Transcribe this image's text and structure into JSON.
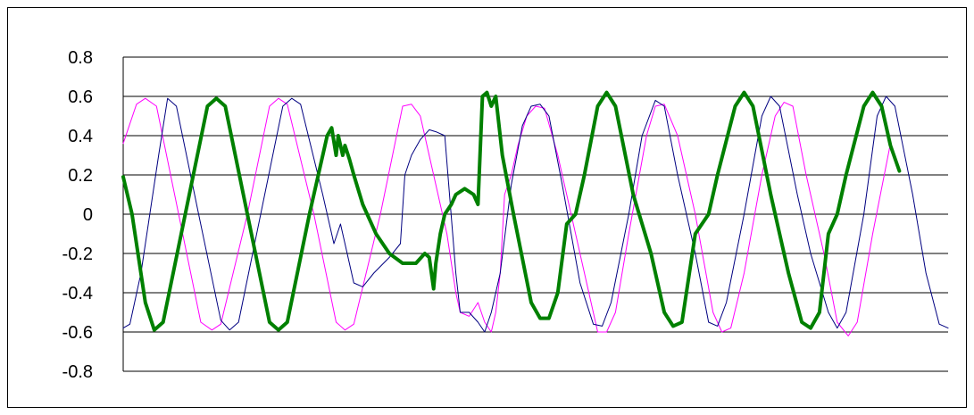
{
  "chart_data": {
    "type": "line",
    "title": "",
    "xlabel": "",
    "ylabel": "",
    "ylim": [
      -0.8,
      0.8
    ],
    "yticks": [
      {
        "value": 0.8,
        "label": "0.8"
      },
      {
        "value": 0.6,
        "label": "0.6"
      },
      {
        "value": 0.4,
        "label": "0.4"
      },
      {
        "value": 0.2,
        "label": "0.2"
      },
      {
        "value": 0,
        "label": "0"
      },
      {
        "value": -0.2,
        "label": "-0.2"
      },
      {
        "value": -0.4,
        "label": "-0.4"
      },
      {
        "value": -0.6,
        "label": "-0.6"
      },
      {
        "value": -0.8,
        "label": "-0.8"
      }
    ],
    "grid": true,
    "legend": "none",
    "series": [
      {
        "color": "#ff00ff",
        "stroke_width": 1,
        "points": [
          [
            0,
            0.36
          ],
          [
            6,
            0.56
          ],
          [
            10,
            0.59
          ],
          [
            15,
            0.55
          ],
          [
            25,
            0
          ],
          [
            35,
            -0.55
          ],
          [
            40,
            -0.59
          ],
          [
            44,
            -0.56
          ],
          [
            56,
            0
          ],
          [
            66,
            0.55
          ],
          [
            70,
            0.59
          ],
          [
            74,
            0.56
          ],
          [
            86,
            0
          ],
          [
            96,
            -0.55
          ],
          [
            100,
            -0.59
          ],
          [
            104,
            -0.56
          ],
          [
            116,
            0
          ],
          [
            126,
            0.55
          ],
          [
            130,
            0.56
          ],
          [
            134,
            0.5
          ],
          [
            146,
            -0.1
          ],
          [
            150,
            -0.4
          ],
          [
            152,
            -0.5
          ],
          [
            156,
            -0.52
          ],
          [
            160,
            -0.45
          ],
          [
            163,
            -0.55
          ],
          [
            166,
            -0.6
          ],
          [
            168,
            -0.5
          ],
          [
            170,
            -0.3
          ],
          [
            172,
            0.1
          ],
          [
            175,
            0.2
          ],
          [
            178,
            0.35
          ],
          [
            182,
            0.5
          ],
          [
            186,
            0.55
          ],
          [
            190,
            0.54
          ],
          [
            196,
            0.3
          ],
          [
            204,
            -0.1
          ],
          [
            210,
            -0.4
          ],
          [
            214,
            -0.6
          ],
          [
            218,
            -0.6
          ],
          [
            222,
            -0.5
          ],
          [
            228,
            -0.1
          ],
          [
            236,
            0.4
          ],
          [
            240,
            0.55
          ],
          [
            244,
            0.56
          ],
          [
            250,
            0.4
          ],
          [
            258,
            0
          ],
          [
            266,
            -0.5
          ],
          [
            270,
            -0.6
          ],
          [
            274,
            -0.58
          ],
          [
            280,
            -0.3
          ],
          [
            288,
            0.2
          ],
          [
            294,
            0.5
          ],
          [
            298,
            0.57
          ],
          [
            302,
            0.55
          ],
          [
            308,
            0.2
          ],
          [
            316,
            -0.2
          ],
          [
            322,
            -0.55
          ],
          [
            327,
            -0.62
          ],
          [
            331,
            -0.55
          ],
          [
            338,
            -0.1
          ],
          [
            346,
            0.36
          ]
        ]
      },
      {
        "color": "#000080",
        "stroke_width": 1,
        "points": [
          [
            0,
            -0.58
          ],
          [
            3,
            -0.56
          ],
          [
            8,
            -0.3
          ],
          [
            16,
            0.3
          ],
          [
            20,
            0.59
          ],
          [
            24,
            0.55
          ],
          [
            34,
            0
          ],
          [
            44,
            -0.54
          ],
          [
            48,
            -0.59
          ],
          [
            52,
            -0.55
          ],
          [
            62,
            0
          ],
          [
            72,
            0.55
          ],
          [
            76,
            0.59
          ],
          [
            80,
            0.56
          ],
          [
            90,
            0.1
          ],
          [
            95,
            -0.15
          ],
          [
            98,
            -0.05
          ],
          [
            100,
            -0.15
          ],
          [
            104,
            -0.35
          ],
          [
            108,
            -0.37
          ],
          [
            113,
            -0.3
          ],
          [
            120,
            -0.22
          ],
          [
            125,
            -0.15
          ],
          [
            127,
            0.2
          ],
          [
            130,
            0.3
          ],
          [
            134,
            0.38
          ],
          [
            138,
            0.43
          ],
          [
            141,
            0.42
          ],
          [
            145,
            0.4
          ],
          [
            150,
            -0.3
          ],
          [
            152,
            -0.5
          ],
          [
            156,
            -0.5
          ],
          [
            160,
            -0.55
          ],
          [
            163,
            -0.6
          ],
          [
            166,
            -0.5
          ],
          [
            170,
            -0.3
          ],
          [
            175,
            0.15
          ],
          [
            180,
            0.45
          ],
          [
            184,
            0.55
          ],
          [
            188,
            0.56
          ],
          [
            192,
            0.5
          ],
          [
            198,
            0.15
          ],
          [
            206,
            -0.35
          ],
          [
            212,
            -0.56
          ],
          [
            216,
            -0.57
          ],
          [
            220,
            -0.45
          ],
          [
            228,
            0
          ],
          [
            234,
            0.4
          ],
          [
            240,
            0.58
          ],
          [
            244,
            0.55
          ],
          [
            250,
            0.2
          ],
          [
            258,
            -0.2
          ],
          [
            264,
            -0.55
          ],
          [
            268,
            -0.57
          ],
          [
            272,
            -0.45
          ],
          [
            280,
            0
          ],
          [
            288,
            0.5
          ],
          [
            292,
            0.6
          ],
          [
            296,
            0.55
          ],
          [
            304,
            0.1
          ],
          [
            310,
            -0.2
          ],
          [
            318,
            -0.5
          ],
          [
            322,
            -0.58
          ],
          [
            326,
            -0.5
          ],
          [
            334,
            0
          ],
          [
            340,
            0.5
          ],
          [
            344,
            0.6
          ],
          [
            348,
            0.55
          ],
          [
            356,
            0.1
          ],
          [
            362,
            -0.3
          ],
          [
            368,
            -0.56
          ],
          [
            372,
            -0.58
          ]
        ]
      },
      {
        "color": "#008000",
        "stroke_width": 4,
        "points": [
          [
            0,
            0.19
          ],
          [
            4,
            0
          ],
          [
            10,
            -0.45
          ],
          [
            14,
            -0.59
          ],
          [
            18,
            -0.55
          ],
          [
            28,
            0
          ],
          [
            38,
            0.55
          ],
          [
            42,
            0.59
          ],
          [
            46,
            0.55
          ],
          [
            56,
            0
          ],
          [
            66,
            -0.55
          ],
          [
            70,
            -0.59
          ],
          [
            74,
            -0.55
          ],
          [
            84,
            0
          ],
          [
            92,
            0.4
          ],
          [
            94,
            0.44
          ],
          [
            96,
            0.3
          ],
          [
            97,
            0.4
          ],
          [
            99,
            0.3
          ],
          [
            100,
            0.35
          ],
          [
            102,
            0.28
          ],
          [
            104,
            0.2
          ],
          [
            108,
            0.05
          ],
          [
            114,
            -0.1
          ],
          [
            120,
            -0.2
          ],
          [
            126,
            -0.25
          ],
          [
            132,
            -0.25
          ],
          [
            136,
            -0.2
          ],
          [
            138,
            -0.22
          ],
          [
            140,
            -0.38
          ],
          [
            141,
            -0.25
          ],
          [
            143,
            -0.1
          ],
          [
            145,
            0
          ],
          [
            148,
            0.05
          ],
          [
            150,
            0.1
          ],
          [
            154,
            0.13
          ],
          [
            158,
            0.1
          ],
          [
            160,
            0.05
          ],
          [
            162,
            0.6
          ],
          [
            164,
            0.62
          ],
          [
            166,
            0.55
          ],
          [
            168,
            0.6
          ],
          [
            171,
            0.3
          ],
          [
            176,
            0
          ],
          [
            184,
            -0.45
          ],
          [
            188,
            -0.53
          ],
          [
            192,
            -0.53
          ],
          [
            196,
            -0.4
          ],
          [
            200,
            -0.05
          ],
          [
            204,
            0
          ],
          [
            208,
            0.2
          ],
          [
            214,
            0.55
          ],
          [
            218,
            0.62
          ],
          [
            222,
            0.55
          ],
          [
            230,
            0.1
          ],
          [
            238,
            -0.2
          ],
          [
            244,
            -0.5
          ],
          [
            248,
            -0.57
          ],
          [
            252,
            -0.55
          ],
          [
            258,
            -0.1
          ],
          [
            264,
            0
          ],
          [
            268,
            0.2
          ],
          [
            276,
            0.55
          ],
          [
            280,
            0.62
          ],
          [
            284,
            0.55
          ],
          [
            292,
            0.1
          ],
          [
            300,
            -0.3
          ],
          [
            306,
            -0.55
          ],
          [
            310,
            -0.58
          ],
          [
            314,
            -0.5
          ],
          [
            318,
            -0.1
          ],
          [
            322,
            0
          ],
          [
            326,
            0.2
          ],
          [
            334,
            0.55
          ],
          [
            338,
            0.62
          ],
          [
            342,
            0.55
          ],
          [
            346,
            0.35
          ],
          [
            350,
            0.22
          ]
        ]
      }
    ]
  }
}
